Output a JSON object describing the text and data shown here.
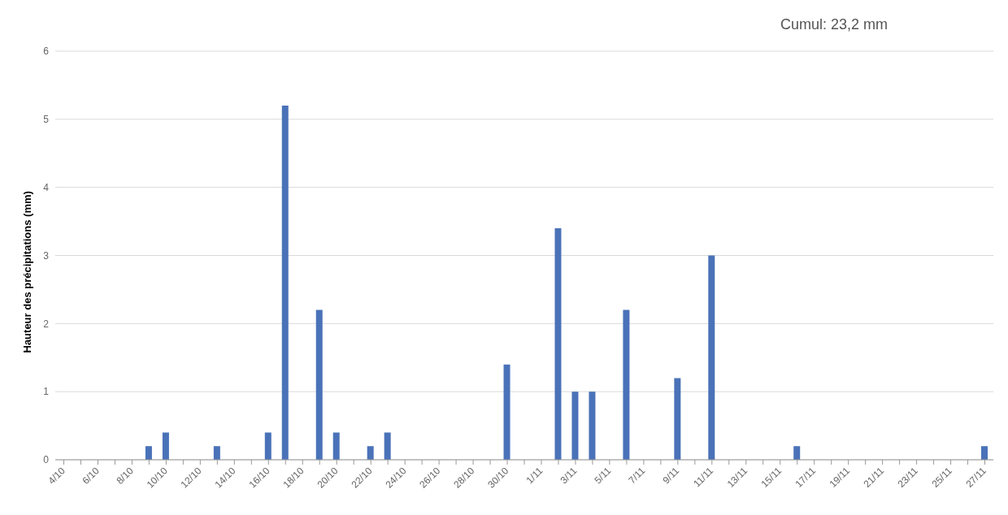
{
  "chart_data": {
    "type": "bar",
    "title": "Cumul: 23,2 mm",
    "ylabel": "Hauteur des précipitations (mm)",
    "categories": [
      "4/10",
      null,
      "6/10",
      null,
      "8/10",
      null,
      "10/10",
      null,
      "12/10",
      null,
      "14/10",
      null,
      "16/10",
      null,
      "18/10",
      null,
      "20/10",
      null,
      "22/10",
      null,
      "24/10",
      null,
      "26/10",
      null,
      "28/10",
      null,
      "30/10",
      null,
      "1/11",
      null,
      "3/11",
      null,
      "5/11",
      null,
      "7/11",
      null,
      "9/11",
      null,
      "11/11",
      null,
      "13/11",
      null,
      "15/11",
      null,
      "17/11",
      null,
      "19/11",
      null,
      "21/11",
      null,
      "23/11",
      null,
      "25/11",
      null,
      "27/11"
    ],
    "values": [
      0,
      0,
      0,
      0,
      0,
      0.2,
      0.4,
      0,
      0,
      0.2,
      0,
      0,
      0.4,
      5.2,
      0,
      2.2,
      0.4,
      0,
      0.2,
      0.4,
      0,
      0,
      0,
      0,
      0,
      0,
      1.4,
      0,
      0,
      3.4,
      1.0,
      1.0,
      0,
      2.2,
      0,
      0,
      1.2,
      0,
      3.0,
      0,
      0,
      0,
      0,
      0.2,
      0,
      0,
      0,
      0,
      0,
      0,
      0,
      0,
      0,
      0,
      0.2
    ],
    "color": "#4a72b8",
    "ylim": [
      0,
      6
    ],
    "yticks": [
      0,
      1,
      2,
      3,
      4,
      5,
      6
    ],
    "grid": "y"
  }
}
